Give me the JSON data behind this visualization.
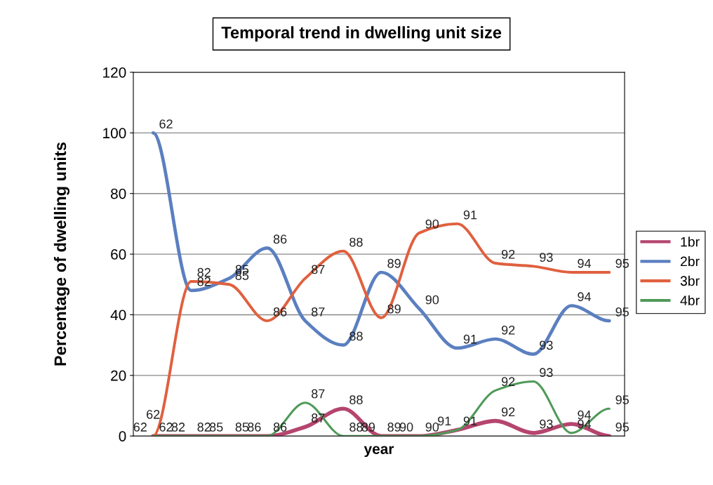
{
  "chart_data": {
    "type": "line",
    "title": "Temporal trend in dwelling unit size",
    "xlabel": "year",
    "ylabel": "Percentage of dwelling units",
    "categories": [
      null,
      null,
      null,
      null,
      null,
      null,
      null,
      null,
      null,
      null,
      null,
      null,
      null
    ],
    "tick_labels": "y",
    "series": [
      {
        "name": "1br",
        "color": "#b5456e",
        "values": [
          0,
          0,
          0,
          0,
          3,
          9,
          0,
          0,
          2,
          5,
          1,
          4,
          0
        ]
      },
      {
        "name": "2br",
        "color": "#5b7fc0",
        "values": [
          100,
          48,
          52,
          62,
          38,
          30,
          54,
          42,
          29,
          32,
          27,
          43,
          38
        ]
      },
      {
        "name": "3br",
        "color": "#e0603f",
        "values": [
          0,
          51,
          50,
          38,
          52,
          61,
          39,
          67,
          70,
          57,
          56,
          54,
          54
        ]
      },
      {
        "name": "4br",
        "color": "#4f9a58",
        "values": [
          0,
          0,
          0,
          0,
          11,
          0,
          0,
          0,
          2,
          15,
          18,
          1,
          9
        ]
      }
    ],
    "annotations": [
      "62",
      "82",
      "85",
      "86",
      "87",
      "88",
      "89",
      "90",
      "91",
      "92",
      "93",
      "94",
      "95",
      "62",
      "82",
      "85",
      "86",
      "87",
      "88",
      "89",
      "90",
      "91",
      "92",
      "93",
      "94",
      "95",
      "62",
      "82",
      "85",
      "86",
      "87",
      "88",
      "89",
      "90",
      "91",
      "92",
      "93",
      "94",
      "95",
      "62",
      "82",
      "85",
      "86",
      "87",
      "88",
      "89",
      "90",
      "91",
      "92",
      "93",
      "94",
      "95"
    ],
    "ylim": [
      0,
      120
    ],
    "yticks": [
      0,
      20,
      40,
      60,
      80,
      100,
      120
    ],
    "grid": "y",
    "legend": "right",
    "marker": "none",
    "line_style": "solid"
  }
}
